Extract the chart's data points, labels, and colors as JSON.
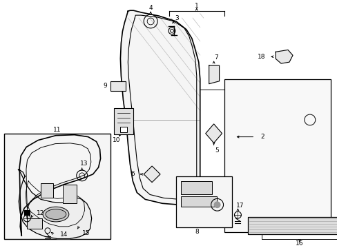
{
  "bg_color": "#ffffff",
  "line_color": "#000000",
  "gray": "#888888",
  "light_gray": "#e8e8e8",
  "box_gray": "#f0f0f0"
}
